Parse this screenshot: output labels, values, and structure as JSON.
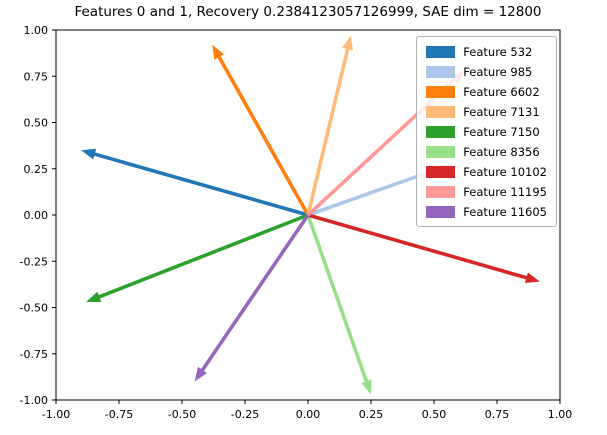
{
  "chart_data": {
    "type": "quiver",
    "title": "Features 0 and 1, Recovery 0.2384123057126999, SAE dim = 12800",
    "xlabel": "",
    "ylabel": "",
    "xlim": [
      -1.0,
      1.0
    ],
    "ylim": [
      -1.0,
      1.0
    ],
    "xticks": [
      "-1.00",
      "-0.75",
      "-0.50",
      "-0.25",
      "0.00",
      "0.25",
      "0.50",
      "0.75",
      "1.00"
    ],
    "yticks": [
      "-1.00",
      "-0.75",
      "-0.50",
      "-0.25",
      "0.00",
      "0.25",
      "0.50",
      "0.75",
      "1.00"
    ],
    "grid": false,
    "legend_position": "upper right",
    "origin": [
      0,
      0
    ],
    "series": [
      {
        "label": "Feature 532",
        "color": "#1f77b4",
        "vector": [
          -0.9,
          0.35
        ]
      },
      {
        "label": "Feature 985",
        "color": "#aec7e8",
        "vector": [
          0.56,
          0.27
        ]
      },
      {
        "label": "Feature 6602",
        "color": "#ff7f0e",
        "vector": [
          -0.38,
          0.92
        ]
      },
      {
        "label": "Feature 7131",
        "color": "#ffbb78",
        "vector": [
          0.17,
          0.97
        ]
      },
      {
        "label": "Feature 7150",
        "color": "#2ca02c",
        "vector": [
          -0.88,
          -0.47
        ]
      },
      {
        "label": "Feature 8356",
        "color": "#98df8a",
        "vector": [
          0.25,
          -0.97
        ]
      },
      {
        "label": "Feature 10102",
        "color": "#d62728",
        "vector": [
          0.92,
          -0.36
        ]
      },
      {
        "label": "Feature 11195",
        "color": "#ff9896",
        "vector": [
          0.62,
          0.78
        ]
      },
      {
        "label": "Feature 11605",
        "color": "#9467bd",
        "vector": [
          -0.45,
          -0.9
        ]
      }
    ]
  }
}
